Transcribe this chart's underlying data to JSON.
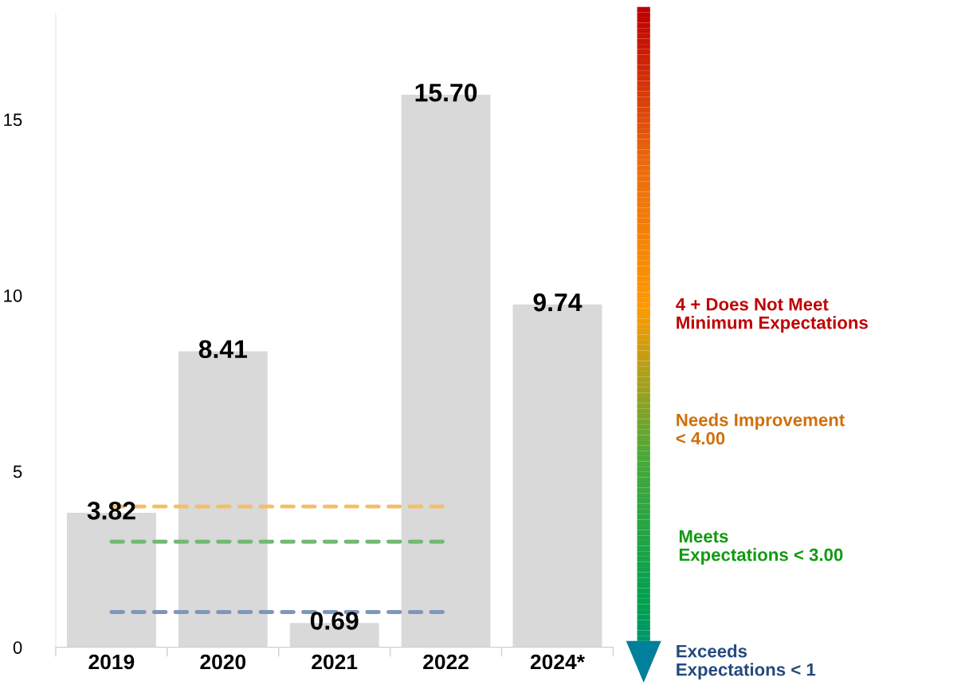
{
  "chart_data": {
    "type": "bar",
    "categories": [
      "2019",
      "2020",
      "2021",
      "2022",
      "2024*"
    ],
    "values": [
      3.82,
      8.41,
      0.69,
      15.7,
      9.74
    ],
    "value_labels": [
      "3.82",
      "8.41",
      "0.69",
      "15.70",
      "9.74"
    ],
    "color": "#d9d9d9",
    "ylim": [
      0,
      18
    ],
    "yticks": [
      0,
      5,
      10,
      15
    ],
    "grid": false,
    "legend": false,
    "ref_lines": [
      {
        "axis": "y",
        "value": 4,
        "color": "#f7bd66",
        "line_style": "dashed"
      },
      {
        "axis": "y",
        "value": 3,
        "color": "#74b874",
        "line_style": "dashed"
      },
      {
        "axis": "y",
        "value": 1,
        "color": "#7f97b8",
        "line_style": "dashed"
      }
    ],
    "annotations": [
      "4 + Does Not Meet\nMinimum Expectations",
      "Needs Improvement\n< 4.00",
      "Meets\nExpectations < 3.00",
      "Exceeds\nExpectations < 1"
    ]
  }
}
